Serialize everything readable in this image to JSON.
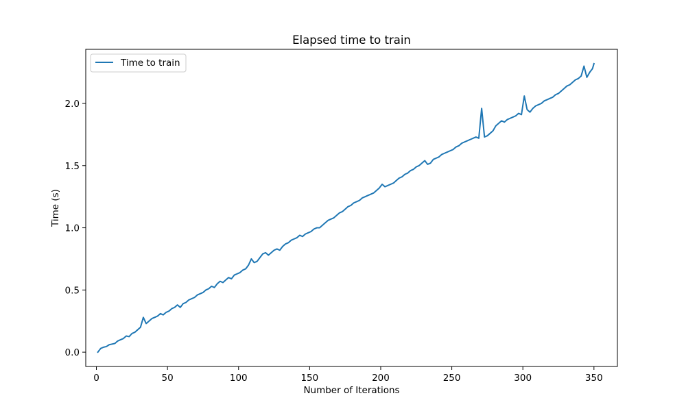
{
  "chart_data": {
    "type": "line",
    "title": "Elapsed time to train",
    "xlabel": "Number of Iterations",
    "ylabel": "Time (s)",
    "xlim": [
      -7.5,
      366.5
    ],
    "ylim": [
      -0.115,
      2.435
    ],
    "xticks": [
      0,
      50,
      100,
      150,
      200,
      250,
      300,
      350
    ],
    "xtick_labels": [
      "0",
      "50",
      "100",
      "150",
      "200",
      "250",
      "300",
      "350"
    ],
    "yticks": [
      0.0,
      0.5,
      1.0,
      1.5,
      2.0
    ],
    "ytick_labels": [
      "0.0",
      "0.5",
      "1.0",
      "1.5",
      "2.0"
    ],
    "grid": false,
    "legend_position": "upper-left",
    "series": [
      {
        "name": "Time to train",
        "color": "#1f77b4",
        "points": [
          [
            1,
            0.0
          ],
          [
            3,
            0.03
          ],
          [
            5,
            0.04
          ],
          [
            7,
            0.045
          ],
          [
            9,
            0.06
          ],
          [
            11,
            0.065
          ],
          [
            13,
            0.07
          ],
          [
            15,
            0.09
          ],
          [
            17,
            0.1
          ],
          [
            19,
            0.11
          ],
          [
            21,
            0.13
          ],
          [
            23,
            0.125
          ],
          [
            25,
            0.15
          ],
          [
            27,
            0.16
          ],
          [
            29,
            0.18
          ],
          [
            31,
            0.2
          ],
          [
            33,
            0.28
          ],
          [
            35,
            0.23
          ],
          [
            37,
            0.25
          ],
          [
            39,
            0.27
          ],
          [
            41,
            0.28
          ],
          [
            43,
            0.29
          ],
          [
            45,
            0.31
          ],
          [
            47,
            0.3
          ],
          [
            49,
            0.32
          ],
          [
            51,
            0.33
          ],
          [
            53,
            0.35
          ],
          [
            55,
            0.36
          ],
          [
            57,
            0.38
          ],
          [
            59,
            0.36
          ],
          [
            61,
            0.39
          ],
          [
            63,
            0.4
          ],
          [
            65,
            0.42
          ],
          [
            67,
            0.43
          ],
          [
            69,
            0.44
          ],
          [
            71,
            0.46
          ],
          [
            73,
            0.47
          ],
          [
            75,
            0.48
          ],
          [
            77,
            0.5
          ],
          [
            79,
            0.51
          ],
          [
            81,
            0.53
          ],
          [
            83,
            0.52
          ],
          [
            85,
            0.55
          ],
          [
            87,
            0.57
          ],
          [
            89,
            0.56
          ],
          [
            91,
            0.58
          ],
          [
            93,
            0.6
          ],
          [
            95,
            0.59
          ],
          [
            97,
            0.62
          ],
          [
            99,
            0.63
          ],
          [
            101,
            0.64
          ],
          [
            103,
            0.66
          ],
          [
            105,
            0.67
          ],
          [
            107,
            0.7
          ],
          [
            109,
            0.75
          ],
          [
            111,
            0.72
          ],
          [
            113,
            0.73
          ],
          [
            115,
            0.76
          ],
          [
            117,
            0.79
          ],
          [
            119,
            0.8
          ],
          [
            121,
            0.78
          ],
          [
            123,
            0.8
          ],
          [
            125,
            0.82
          ],
          [
            127,
            0.83
          ],
          [
            129,
            0.82
          ],
          [
            131,
            0.85
          ],
          [
            133,
            0.87
          ],
          [
            135,
            0.88
          ],
          [
            137,
            0.9
          ],
          [
            139,
            0.91
          ],
          [
            141,
            0.92
          ],
          [
            143,
            0.94
          ],
          [
            145,
            0.93
          ],
          [
            147,
            0.95
          ],
          [
            149,
            0.96
          ],
          [
            151,
            0.97
          ],
          [
            153,
            0.99
          ],
          [
            155,
            1.0
          ],
          [
            157,
            1.0
          ],
          [
            159,
            1.02
          ],
          [
            161,
            1.04
          ],
          [
            163,
            1.06
          ],
          [
            165,
            1.07
          ],
          [
            167,
            1.08
          ],
          [
            169,
            1.1
          ],
          [
            171,
            1.12
          ],
          [
            173,
            1.13
          ],
          [
            175,
            1.15
          ],
          [
            177,
            1.17
          ],
          [
            179,
            1.18
          ],
          [
            181,
            1.2
          ],
          [
            183,
            1.21
          ],
          [
            185,
            1.22
          ],
          [
            187,
            1.24
          ],
          [
            189,
            1.25
          ],
          [
            191,
            1.26
          ],
          [
            193,
            1.27
          ],
          [
            195,
            1.28
          ],
          [
            197,
            1.3
          ],
          [
            199,
            1.32
          ],
          [
            201,
            1.35
          ],
          [
            203,
            1.33
          ],
          [
            205,
            1.34
          ],
          [
            207,
            1.35
          ],
          [
            209,
            1.36
          ],
          [
            211,
            1.38
          ],
          [
            213,
            1.4
          ],
          [
            215,
            1.41
          ],
          [
            217,
            1.43
          ],
          [
            219,
            1.44
          ],
          [
            221,
            1.46
          ],
          [
            223,
            1.47
          ],
          [
            225,
            1.49
          ],
          [
            227,
            1.5
          ],
          [
            229,
            1.52
          ],
          [
            231,
            1.54
          ],
          [
            233,
            1.51
          ],
          [
            235,
            1.52
          ],
          [
            237,
            1.55
          ],
          [
            239,
            1.56
          ],
          [
            241,
            1.57
          ],
          [
            243,
            1.59
          ],
          [
            245,
            1.6
          ],
          [
            247,
            1.61
          ],
          [
            249,
            1.62
          ],
          [
            251,
            1.63
          ],
          [
            253,
            1.65
          ],
          [
            255,
            1.66
          ],
          [
            257,
            1.68
          ],
          [
            259,
            1.69
          ],
          [
            261,
            1.7
          ],
          [
            263,
            1.71
          ],
          [
            265,
            1.72
          ],
          [
            267,
            1.73
          ],
          [
            269,
            1.72
          ],
          [
            271,
            1.96
          ],
          [
            273,
            1.73
          ],
          [
            275,
            1.74
          ],
          [
            277,
            1.76
          ],
          [
            279,
            1.78
          ],
          [
            281,
            1.82
          ],
          [
            283,
            1.84
          ],
          [
            285,
            1.86
          ],
          [
            287,
            1.85
          ],
          [
            289,
            1.87
          ],
          [
            291,
            1.88
          ],
          [
            293,
            1.89
          ],
          [
            295,
            1.9
          ],
          [
            297,
            1.92
          ],
          [
            299,
            1.91
          ],
          [
            301,
            2.06
          ],
          [
            303,
            1.95
          ],
          [
            305,
            1.93
          ],
          [
            307,
            1.96
          ],
          [
            309,
            1.98
          ],
          [
            311,
            1.99
          ],
          [
            313,
            2.0
          ],
          [
            315,
            2.02
          ],
          [
            317,
            2.03
          ],
          [
            319,
            2.04
          ],
          [
            321,
            2.05
          ],
          [
            323,
            2.07
          ],
          [
            325,
            2.08
          ],
          [
            327,
            2.1
          ],
          [
            329,
            2.12
          ],
          [
            331,
            2.14
          ],
          [
            333,
            2.15
          ],
          [
            335,
            2.17
          ],
          [
            337,
            2.19
          ],
          [
            339,
            2.2
          ],
          [
            341,
            2.22
          ],
          [
            343,
            2.3
          ],
          [
            345,
            2.21
          ],
          [
            347,
            2.25
          ],
          [
            349,
            2.28
          ],
          [
            350,
            2.32
          ]
        ]
      }
    ]
  }
}
